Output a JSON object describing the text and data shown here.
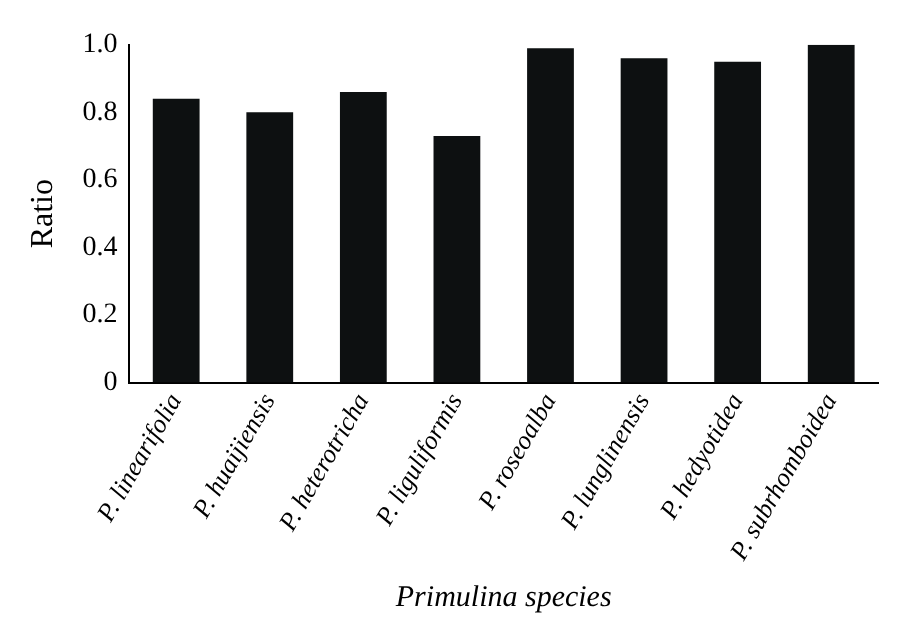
{
  "chart_data": {
    "type": "bar",
    "xlabel": "Primulina species",
    "ylabel": "Ratio",
    "categories": [
      "P. linearifolia",
      "P. huaijiensis",
      "P. heterotricha",
      "P. liguliformis",
      "P. roseoalba",
      "P. lunglinensis",
      "P. hedyotidea",
      "P. subrhomboidea"
    ],
    "values": [
      0.84,
      0.8,
      0.86,
      0.73,
      0.99,
      0.96,
      0.95,
      1.0
    ],
    "color": "#0d1011",
    "ylim": [
      0,
      1
    ],
    "yticks": [
      0,
      {
        "value": 0.2,
        "label": "0.2"
      },
      {
        "value": 0.4,
        "label": "0.4"
      },
      {
        "value": 0.6,
        "label": "0.6"
      },
      {
        "value": 0.8,
        "label": "0.8"
      },
      {
        "value": 1,
        "label": "1.0"
      }
    ],
    "grid": false,
    "legend": false
  }
}
